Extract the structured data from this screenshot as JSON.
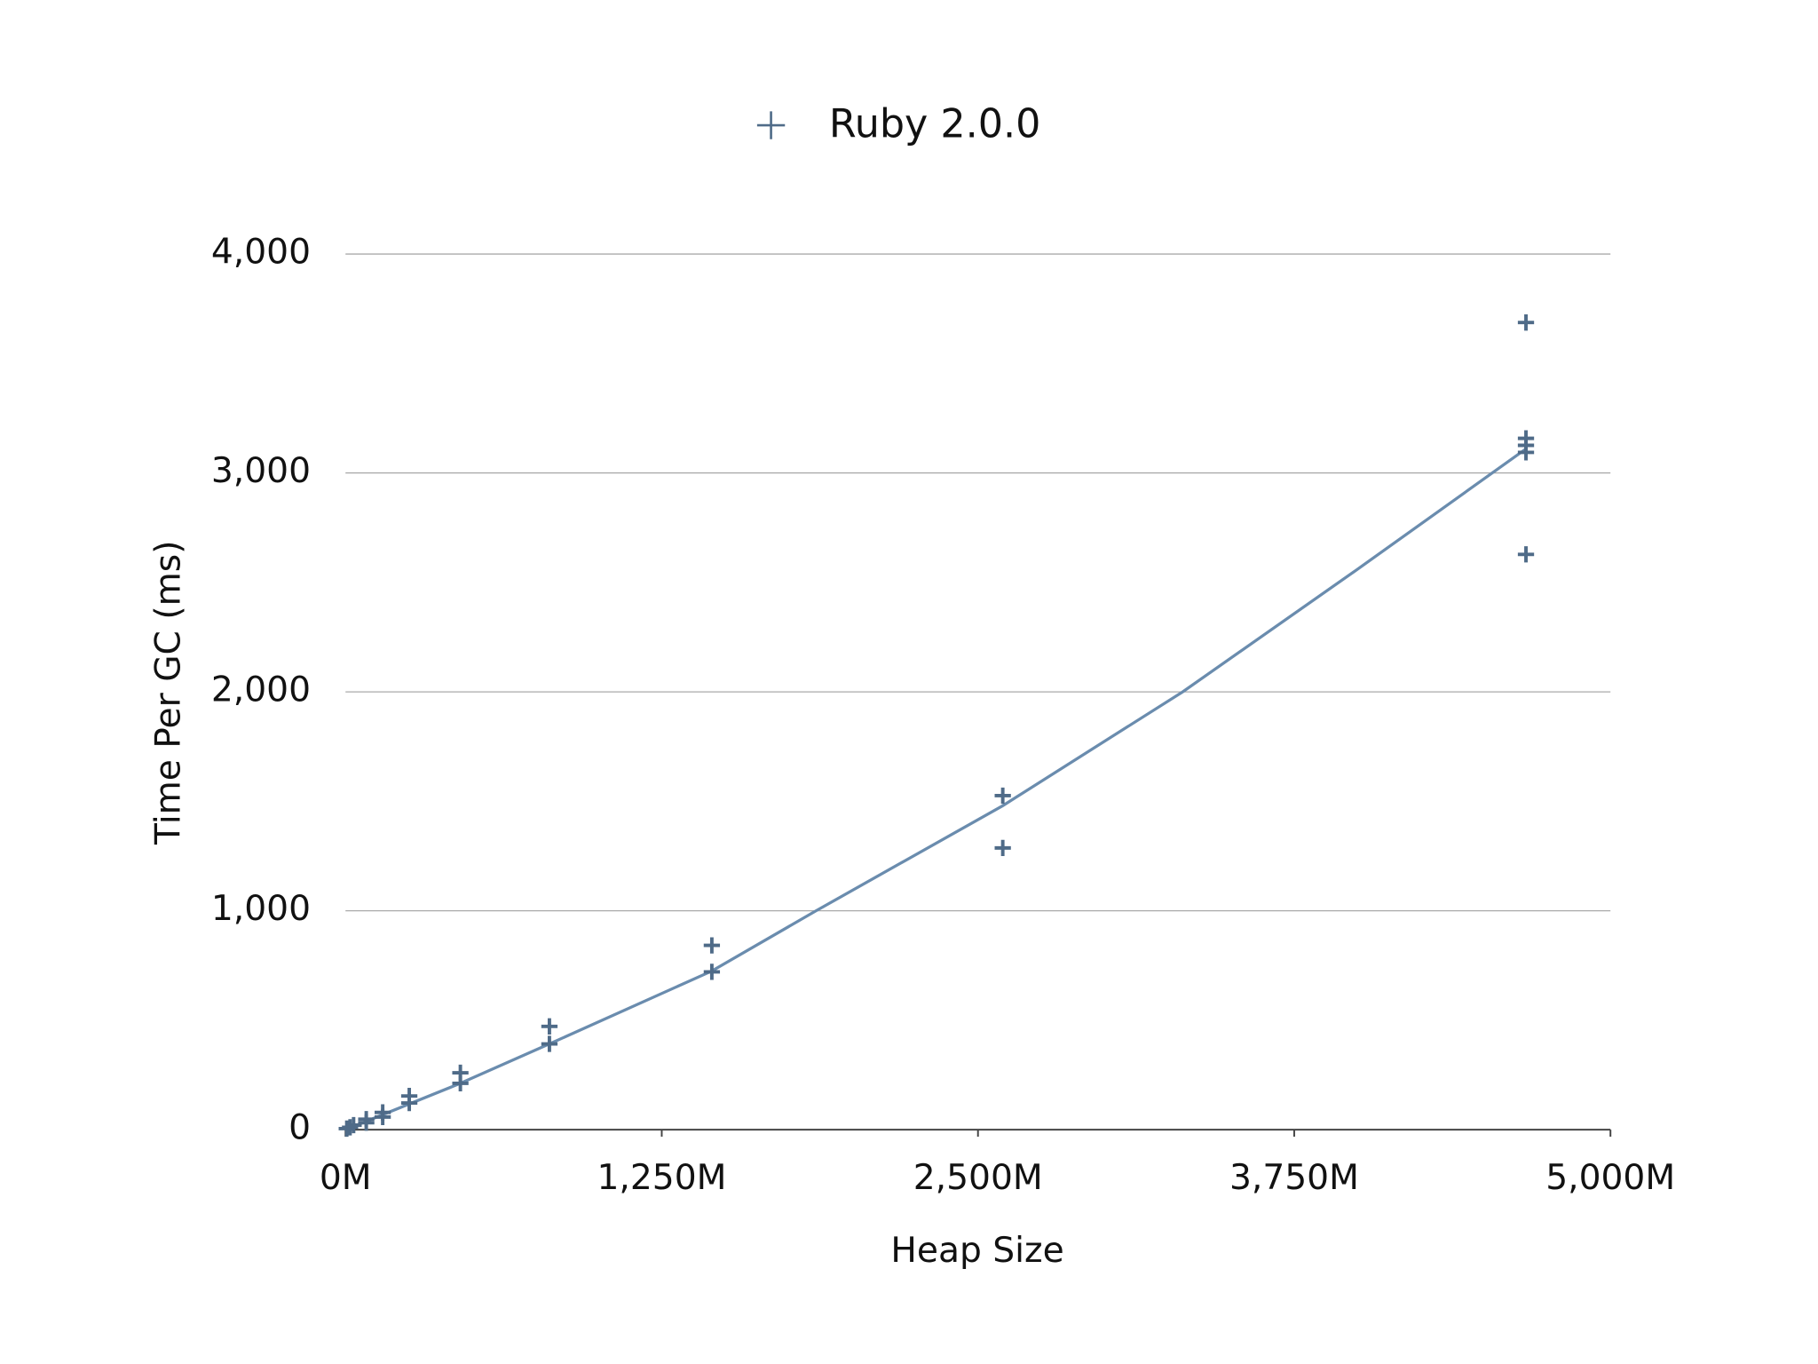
{
  "chart_data": {
    "type": "scatter",
    "xlabel": "Heap Size",
    "ylabel": "Time Per GC (ms)",
    "xlim": [
      0,
      5000
    ],
    "ylim": [
      0,
      4000
    ],
    "xticks": [
      {
        "value": 0,
        "label": "0M"
      },
      {
        "value": 1250,
        "label": "1,250M"
      },
      {
        "value": 2500,
        "label": "2,500M"
      },
      {
        "value": 3750,
        "label": "3,750M"
      },
      {
        "value": 5000,
        "label": "5,000M"
      }
    ],
    "yticks": [
      0,
      {
        "value": 1000,
        "label": "1,000"
      },
      {
        "value": 2000,
        "label": "2,000"
      },
      {
        "value": 3000,
        "label": "3,000"
      },
      {
        "value": 4000,
        "label": "4,000"
      }
    ],
    "grid": true,
    "legend": "top",
    "series": [
      {
        "name": "Ruby 2.0.0",
        "color": "#4f6b88",
        "x": [
          4666,
          4666,
          4666,
          4666,
          4666,
          2598,
          2598,
          1448,
          1448,
          806,
          806,
          454,
          454,
          252,
          252,
          147,
          147,
          82,
          82,
          32,
          18,
          5
        ],
        "values": [
          3687,
          3158,
          3126,
          3094,
          2628,
          1526,
          1287,
          842,
          721,
          472,
          392,
          260,
          212,
          154,
          122,
          79,
          58,
          48,
          32,
          21,
          11,
          5
        ]
      }
    ],
    "trendline": {
      "color": "#6a8cae",
      "x": [
        0,
        450,
        806,
        1448,
        1860,
        2598,
        3309,
        4000,
        4666
      ],
      "values": [
        0,
        210,
        392,
        725,
        1000,
        1480,
        2000,
        2560,
        3110
      ]
    }
  }
}
